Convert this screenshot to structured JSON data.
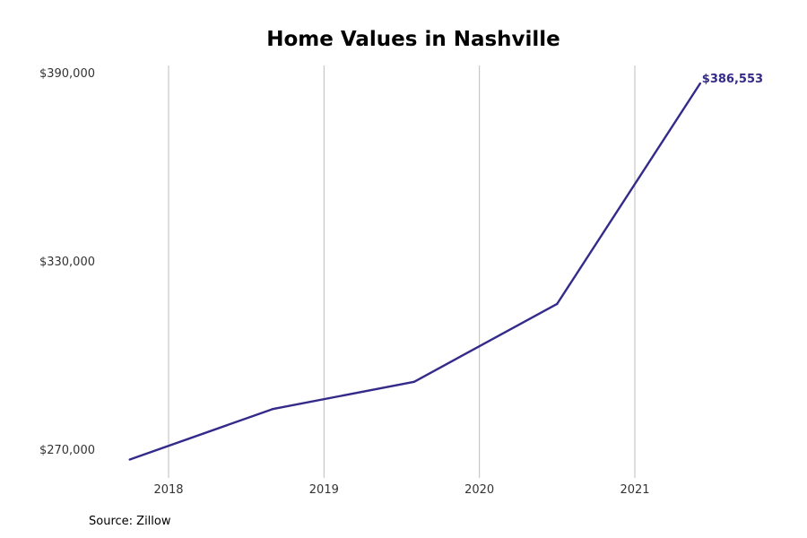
{
  "chart_data": {
    "type": "line",
    "title": "Home Values in Nashville",
    "xlabel": "",
    "ylabel": "",
    "x_ticks": [
      "2018",
      "2019",
      "2020",
      "2021"
    ],
    "y_ticks": [
      "$270,000",
      "$330,000",
      "$390,000"
    ],
    "ylim": [
      266000,
      393000
    ],
    "xlim": [
      2017.6,
      2021.85
    ],
    "grid": "vertical",
    "series": [
      {
        "color": "#332a8a",
        "points": [
          {
            "x": 2017.75,
            "y": 266700
          },
          {
            "x": 2018.67,
            "y": 282800
          },
          {
            "x": 2019.58,
            "y": 291500
          },
          {
            "x": 2020.5,
            "y": 316300
          },
          {
            "x": 2021.42,
            "y": 386553
          }
        ]
      }
    ],
    "end_label": "$386,553"
  },
  "footer": {
    "source": "Source: Zillow"
  }
}
